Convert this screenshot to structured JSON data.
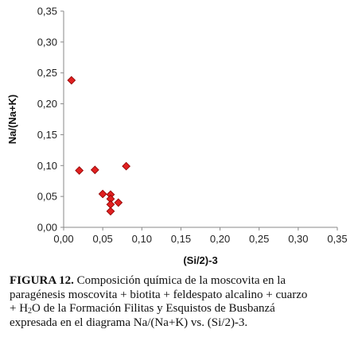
{
  "chart_data": {
    "type": "scatter",
    "title": "",
    "xlabel": "(Si/2)-3",
    "ylabel": "Na/(Na+K)",
    "xlim": [
      0,
      0.35
    ],
    "ylim": [
      0,
      0.35
    ],
    "x_ticks": [
      "0,00",
      "0,05",
      "0,10",
      "0,15",
      "0,20",
      "0,25",
      "0,30",
      "0,35"
    ],
    "y_ticks": [
      "0,00",
      "0,05",
      "0,10",
      "0,15",
      "0,20",
      "0,25",
      "0,30",
      "0,35"
    ],
    "grid": false,
    "legend": "none",
    "marker": "diamond",
    "marker_color": "#e02020",
    "marker_edge": "#8b0000",
    "series": [
      {
        "points": [
          {
            "x": 0.01,
            "y": 0.238
          },
          {
            "x": 0.02,
            "y": 0.092
          },
          {
            "x": 0.04,
            "y": 0.093
          },
          {
            "x": 0.08,
            "y": 0.099
          },
          {
            "x": 0.05,
            "y": 0.054
          },
          {
            "x": 0.06,
            "y": 0.053
          },
          {
            "x": 0.06,
            "y": 0.046
          },
          {
            "x": 0.06,
            "y": 0.037
          },
          {
            "x": 0.07,
            "y": 0.04
          },
          {
            "x": 0.06,
            "y": 0.026
          }
        ]
      }
    ]
  },
  "caption": {
    "label": "FIGURA 12.",
    "line1": " Composición química de la moscovita en la",
    "line2": "paragénesis moscovita + biotita + feldespato alcalino + cuarzo",
    "line3_pre": "+ H",
    "line3_sub": "2",
    "line3_post": "O de la Formación Filitas y Esquistos de Busbanzá",
    "line4": "expresada en el diagrama Na/(Na+K) vs. (Si/2)-3."
  }
}
